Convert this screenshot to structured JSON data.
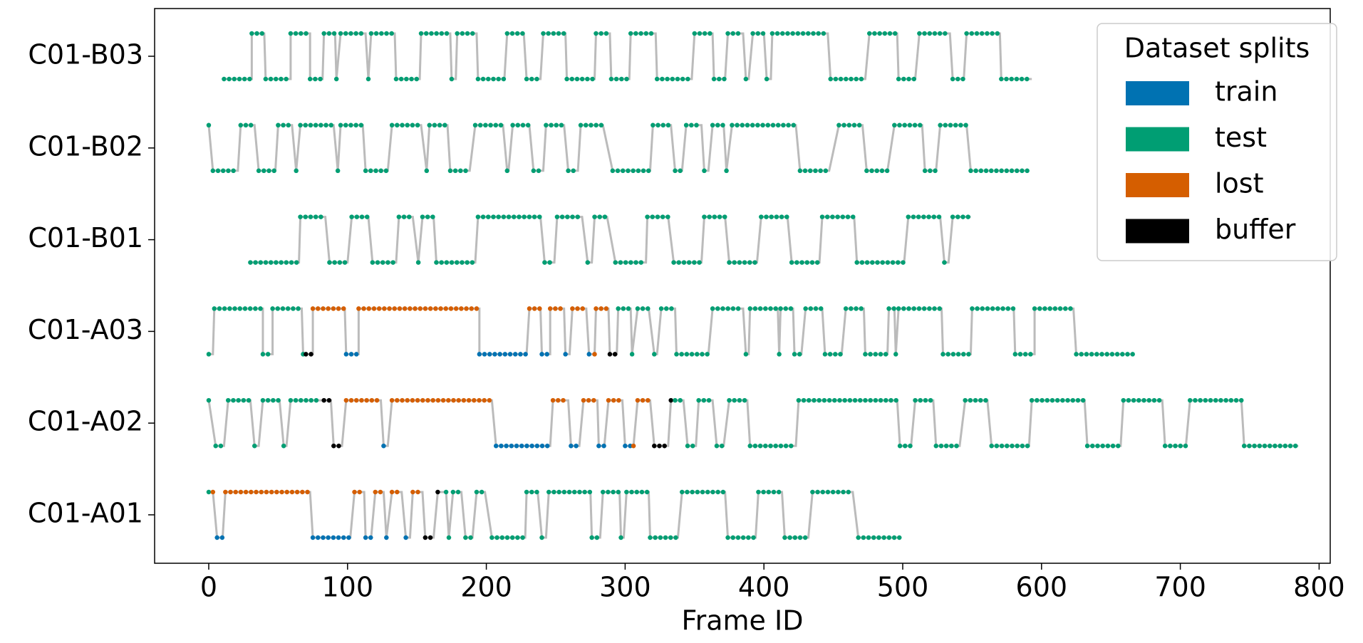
{
  "chart_data": {
    "type": "track",
    "xlabel": "Frame ID",
    "xlim": [
      -39,
      808
    ],
    "xticks": [
      0,
      100,
      200,
      300,
      400,
      500,
      600,
      700,
      800
    ],
    "legend_title": "Dataset splits",
    "legend": "upper right",
    "line_color": "#bbbbbb",
    "series": [
      {
        "name": "train",
        "color": "#0072b2"
      },
      {
        "name": "test",
        "color": "#009e73"
      },
      {
        "name": "lost",
        "color": "#d55e00"
      },
      {
        "name": "buffer",
        "color": "#000000"
      }
    ],
    "categories": [
      "C01-B03",
      "C01-B02",
      "C01-B01",
      "C01-A03",
      "C01-A02",
      "C01-A01"
    ],
    "rows": [
      [
        [
          11,
          31,
          0,
          1
        ],
        [
          31,
          40,
          1,
          1
        ],
        [
          41,
          59,
          0,
          1
        ],
        [
          59,
          73,
          1,
          1
        ],
        [
          73,
          82,
          0,
          1
        ],
        [
          83,
          91,
          1,
          1
        ],
        [
          92,
          92,
          0,
          1
        ],
        [
          95,
          113,
          1,
          1
        ],
        [
          115,
          115,
          0,
          1
        ],
        [
          117,
          134,
          1,
          1
        ],
        [
          135,
          152,
          0,
          1
        ],
        [
          153,
          174,
          1,
          1
        ],
        [
          175,
          178,
          0,
          1
        ],
        [
          179,
          193,
          1,
          1
        ],
        [
          194,
          213,
          0,
          1
        ],
        [
          215,
          227,
          1,
          1
        ],
        [
          229,
          239,
          0,
          1
        ],
        [
          241,
          257,
          1,
          1
        ],
        [
          258,
          278,
          0,
          1
        ],
        [
          279,
          289,
          1,
          1
        ],
        [
          290,
          303,
          0,
          1
        ],
        [
          304,
          322,
          1,
          1
        ],
        [
          323,
          348,
          0,
          1
        ],
        [
          350,
          363,
          1,
          1
        ],
        [
          364,
          372,
          0,
          1
        ],
        [
          374,
          385,
          1,
          1
        ],
        [
          387,
          389,
          0,
          1
        ],
        [
          392,
          400,
          1,
          1
        ],
        [
          402,
          405,
          0,
          1
        ],
        [
          406,
          446,
          1,
          1
        ],
        [
          448,
          473,
          0,
          1
        ],
        [
          476,
          496,
          1,
          1
        ],
        [
          497,
          509,
          0,
          1
        ],
        [
          512,
          534,
          1,
          1
        ],
        [
          536,
          544,
          0,
          1
        ],
        [
          546,
          570,
          1,
          1
        ],
        [
          571,
          593,
          0,
          1
        ]
      ],
      [
        [
          0,
          0,
          1,
          1
        ],
        [
          3,
          21,
          0,
          1
        ],
        [
          23,
          33,
          1,
          1
        ],
        [
          36,
          48,
          0,
          1
        ],
        [
          50,
          60,
          1,
          1
        ],
        [
          63,
          63,
          0,
          1
        ],
        [
          66,
          90,
          1,
          1
        ],
        [
          93,
          93,
          0,
          1
        ],
        [
          95,
          111,
          1,
          1
        ],
        [
          113,
          129,
          0,
          1
        ],
        [
          132,
          153,
          1,
          1
        ],
        [
          157,
          157,
          0,
          1
        ],
        [
          159,
          172,
          1,
          1
        ],
        [
          174,
          188,
          0,
          1
        ],
        [
          192,
          212,
          1,
          1
        ],
        [
          215,
          216,
          0,
          1
        ],
        [
          219,
          231,
          1,
          1
        ],
        [
          234,
          241,
          0,
          1
        ],
        [
          243,
          256,
          1,
          1
        ],
        [
          259,
          266,
          0,
          1
        ],
        [
          268,
          284,
          1,
          1
        ],
        [
          291,
          318,
          0,
          1
        ],
        [
          320,
          333,
          1,
          1
        ],
        [
          336,
          341,
          0,
          1
        ],
        [
          344,
          355,
          1,
          1
        ],
        [
          357,
          360,
          0,
          1
        ],
        [
          363,
          371,
          1,
          1
        ],
        [
          373,
          373,
          0,
          1
        ],
        [
          377,
          423,
          1,
          1
        ],
        [
          426,
          447,
          0,
          1
        ],
        [
          454,
          471,
          1,
          1
        ],
        [
          474,
          489,
          0,
          1
        ],
        [
          494,
          514,
          1,
          1
        ],
        [
          516,
          524,
          0,
          1
        ],
        [
          527,
          546,
          1,
          1
        ],
        [
          549,
          591,
          0,
          1
        ]
      ],
      [
        [
          30,
          65,
          0,
          1
        ],
        [
          66,
          84,
          1,
          1
        ],
        [
          87,
          100,
          0,
          1
        ],
        [
          103,
          115,
          1,
          1
        ],
        [
          118,
          135,
          0,
          1
        ],
        [
          137,
          147,
          1,
          1
        ],
        [
          151,
          151,
          0,
          1
        ],
        [
          154,
          162,
          1,
          1
        ],
        [
          164,
          192,
          0,
          1
        ],
        [
          194,
          239,
          1,
          1
        ],
        [
          242,
          249,
          0,
          1
        ],
        [
          251,
          269,
          1,
          1
        ],
        [
          273,
          276,
          0,
          1
        ],
        [
          278,
          287,
          1,
          1
        ],
        [
          293,
          315,
          0,
          1
        ],
        [
          316,
          331,
          1,
          1
        ],
        [
          335,
          355,
          0,
          1
        ],
        [
          357,
          372,
          1,
          1
        ],
        [
          375,
          395,
          0,
          1
        ],
        [
          398,
          417,
          1,
          1
        ],
        [
          420,
          440,
          0,
          1
        ],
        [
          442,
          465,
          1,
          1
        ],
        [
          467,
          501,
          0,
          1
        ],
        [
          504,
          527,
          1,
          1
        ],
        [
          530,
          533,
          0,
          1
        ],
        [
          536,
          549,
          1,
          1
        ]
      ],
      [
        [
          0,
          3,
          0,
          1
        ],
        [
          4,
          39,
          1,
          1
        ],
        [
          39,
          46,
          0,
          1
        ],
        [
          46,
          67,
          1,
          1
        ],
        [
          68,
          70,
          0,
          1
        ],
        [
          70,
          75,
          0,
          3
        ],
        [
          75,
          98,
          1,
          2
        ],
        [
          99,
          108,
          0,
          0
        ],
        [
          108,
          195,
          1,
          2
        ],
        [
          195,
          229,
          0,
          0
        ],
        [
          231,
          239,
          1,
          2
        ],
        [
          240,
          246,
          0,
          0
        ],
        [
          246,
          256,
          1,
          2
        ],
        [
          257,
          260,
          0,
          0
        ],
        [
          262,
          272,
          1,
          2
        ],
        [
          274,
          277,
          0,
          0
        ],
        [
          278,
          278,
          0,
          2
        ],
        [
          279,
          288,
          1,
          2
        ],
        [
          289,
          294,
          0,
          3
        ],
        [
          295,
          304,
          1,
          1
        ],
        [
          305,
          305,
          0,
          1
        ],
        [
          309,
          317,
          1,
          1
        ],
        [
          321,
          323,
          0,
          1
        ],
        [
          326,
          336,
          1,
          1
        ],
        [
          337,
          360,
          0,
          1
        ],
        [
          363,
          385,
          1,
          1
        ],
        [
          387,
          389,
          0,
          1
        ],
        [
          390,
          410,
          1,
          1
        ],
        [
          411,
          411,
          0,
          1
        ],
        [
          412,
          421,
          1,
          1
        ],
        [
          422,
          427,
          0,
          1
        ],
        [
          430,
          442,
          1,
          1
        ],
        [
          444,
          456,
          0,
          1
        ],
        [
          459,
          472,
          1,
          1
        ],
        [
          473,
          489,
          0,
          1
        ],
        [
          490,
          494,
          1,
          1
        ],
        [
          495,
          495,
          0,
          1
        ],
        [
          497,
          528,
          1,
          1
        ],
        [
          529,
          549,
          0,
          1
        ],
        [
          550,
          580,
          1,
          1
        ],
        [
          581,
          595,
          0,
          1
        ],
        [
          595,
          623,
          1,
          1
        ],
        [
          625,
          666,
          0,
          1
        ]
      ],
      [
        [
          0,
          0,
          1,
          1
        ],
        [
          5,
          11,
          0,
          1
        ],
        [
          14,
          30,
          1,
          1
        ],
        [
          33,
          36,
          0,
          1
        ],
        [
          39,
          51,
          1,
          1
        ],
        [
          54,
          56,
          0,
          1
        ],
        [
          59,
          81,
          1,
          1
        ],
        [
          83,
          88,
          1,
          3
        ],
        [
          90,
          96,
          0,
          3
        ],
        [
          99,
          124,
          1,
          2
        ],
        [
          126,
          129,
          0,
          0
        ],
        [
          132,
          204,
          1,
          2
        ],
        [
          207,
          246,
          0,
          0
        ],
        [
          248,
          259,
          1,
          2
        ],
        [
          261,
          267,
          0,
          0
        ],
        [
          270,
          280,
          1,
          2
        ],
        [
          281,
          285,
          0,
          0
        ],
        [
          288,
          298,
          1,
          2
        ],
        [
          300,
          304,
          0,
          0
        ],
        [
          306,
          306,
          0,
          2
        ],
        [
          309,
          318,
          1,
          2
        ],
        [
          321,
          331,
          0,
          3
        ],
        [
          333,
          333,
          1,
          3
        ],
        [
          336,
          342,
          1,
          1
        ],
        [
          345,
          351,
          0,
          1
        ],
        [
          353,
          363,
          1,
          1
        ],
        [
          366,
          371,
          0,
          1
        ],
        [
          375,
          388,
          1,
          1
        ],
        [
          390,
          423,
          0,
          1
        ],
        [
          425,
          496,
          1,
          1
        ],
        [
          498,
          506,
          0,
          1
        ],
        [
          509,
          522,
          1,
          1
        ],
        [
          524,
          541,
          0,
          1
        ],
        [
          545,
          561,
          1,
          1
        ],
        [
          564,
          591,
          0,
          1
        ],
        [
          593,
          631,
          1,
          1
        ],
        [
          633,
          657,
          0,
          1
        ],
        [
          659,
          687,
          1,
          1
        ],
        [
          689,
          704,
          0,
          1
        ],
        [
          707,
          744,
          1,
          1
        ],
        [
          746,
          785,
          0,
          1
        ]
      ],
      [
        [
          0,
          0,
          1,
          1
        ],
        [
          3,
          3,
          1,
          2
        ],
        [
          6,
          10,
          0,
          0
        ],
        [
          12,
          73,
          1,
          2
        ],
        [
          75,
          102,
          0,
          0
        ],
        [
          105,
          112,
          1,
          2
        ],
        [
          113,
          117,
          0,
          0
        ],
        [
          120,
          126,
          1,
          2
        ],
        [
          128,
          128,
          0,
          0
        ],
        [
          132,
          139,
          1,
          2
        ],
        [
          142,
          145,
          0,
          0
        ],
        [
          147,
          154,
          1,
          2
        ],
        [
          156,
          162,
          0,
          3
        ],
        [
          165,
          168,
          1,
          3
        ],
        [
          171,
          171,
          1,
          1
        ],
        [
          173,
          173,
          0,
          1
        ],
        [
          176,
          182,
          1,
          1
        ],
        [
          185,
          190,
          0,
          1
        ],
        [
          193,
          199,
          1,
          1
        ],
        [
          204,
          228,
          0,
          1
        ],
        [
          229,
          237,
          1,
          1
        ],
        [
          240,
          243,
          0,
          1
        ],
        [
          245,
          275,
          1,
          1
        ],
        [
          276,
          282,
          0,
          1
        ],
        [
          284,
          296,
          1,
          1
        ],
        [
          297,
          299,
          0,
          1
        ],
        [
          301,
          317,
          1,
          1
        ],
        [
          318,
          338,
          0,
          1
        ],
        [
          341,
          372,
          1,
          1
        ],
        [
          374,
          394,
          0,
          1
        ],
        [
          396,
          413,
          1,
          1
        ],
        [
          415,
          432,
          0,
          1
        ],
        [
          435,
          464,
          1,
          1
        ],
        [
          468,
          498,
          0,
          1
        ]
      ]
    ]
  }
}
